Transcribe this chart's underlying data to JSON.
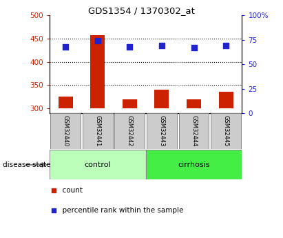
{
  "title": "GDS1354 / 1370302_at",
  "samples": [
    "GSM32440",
    "GSM32441",
    "GSM32442",
    "GSM32443",
    "GSM32444",
    "GSM32445"
  ],
  "groups": [
    "control",
    "control",
    "control",
    "cirrhosis",
    "cirrhosis",
    "cirrhosis"
  ],
  "count_values": [
    325,
    458,
    320,
    340,
    320,
    336
  ],
  "percentile_values": [
    68,
    74,
    68,
    69,
    67,
    69
  ],
  "count_baseline": 300,
  "ylim_left": [
    290,
    500
  ],
  "ylim_right": [
    0,
    100
  ],
  "yticks_left": [
    300,
    350,
    400,
    450,
    500
  ],
  "yticks_right": [
    0,
    25,
    50,
    75,
    100
  ],
  "bar_color": "#cc2200",
  "dot_color": "#2222cc",
  "control_color": "#bbffbb",
  "cirrhosis_color": "#44ee44",
  "sample_box_color": "#cccccc",
  "sample_box_edge": "#888888",
  "left_tick_color": "#cc2200",
  "right_tick_color": "#2222cc",
  "legend_count_label": "count",
  "legend_percentile_label": "percentile rank within the sample",
  "disease_state_label": "disease state",
  "figsize": [
    4.11,
    3.45
  ],
  "dpi": 100
}
